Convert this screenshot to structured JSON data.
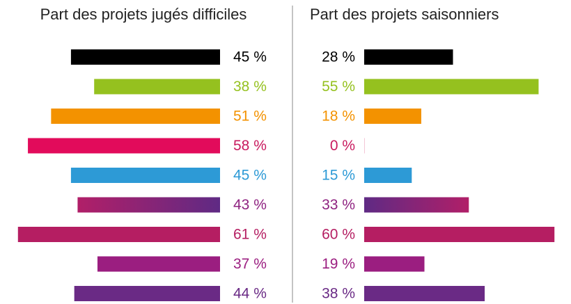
{
  "chart_data": [
    {
      "type": "bar",
      "orientation": "horizontal",
      "direction": "left",
      "title": "Part des projets jugés difficiles",
      "values": [
        45,
        38,
        51,
        58,
        45,
        43,
        61,
        37,
        44
      ],
      "value_labels": [
        "45 %",
        "38 %",
        "51 %",
        "58 %",
        "45 %",
        "43 %",
        "61 %",
        "37 %",
        "44 %"
      ],
      "colors": [
        "#000000",
        "#95c11f",
        "#f39200",
        "#e20b5b",
        "#2d9ad6",
        [
          "#b11f68",
          "#5f2a84"
        ],
        "#b51e62",
        "#9b1e80",
        "#6a2a85"
      ],
      "label_colors": [
        "#000000",
        "#95c11f",
        "#f39200",
        "#c81a5e",
        "#2d9ad6",
        "#8f2381",
        "#b51e62",
        "#9b1e80",
        "#6a2a85"
      ],
      "xlim": [
        0,
        66
      ]
    },
    {
      "type": "bar",
      "orientation": "horizontal",
      "direction": "right",
      "title": "Part des projets saisonniers",
      "values": [
        28,
        55,
        18,
        0,
        15,
        33,
        60,
        19,
        38
      ],
      "value_labels": [
        "28 %",
        "55 %",
        "18 %",
        "0 %",
        "15 %",
        "33 %",
        "60 %",
        "19 %",
        "38 %"
      ],
      "colors": [
        "#000000",
        "#95c11f",
        "#f39200",
        "#e20b5b",
        "#2d9ad6",
        [
          "#5f2a84",
          "#b11f68"
        ],
        "#b51e62",
        "#9b1e80",
        "#6a2a85"
      ],
      "label_colors": [
        "#000000",
        "#95c11f",
        "#f39200",
        "#c81a5e",
        "#2d9ad6",
        "#8f2381",
        "#b51e62",
        "#9b1e80",
        "#6a2a85"
      ],
      "xlim": [
        0,
        65
      ]
    }
  ]
}
